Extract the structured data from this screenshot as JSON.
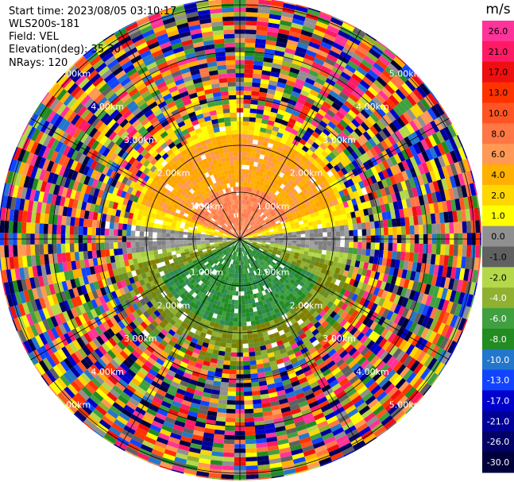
{
  "header": {
    "start_time": "Start time: 2023/08/05 03:10:17",
    "instrument": "WLS200s-181",
    "field": "Field: VEL",
    "elevation": "Elevation(deg): 35.30",
    "nrays": "NRays: 120"
  },
  "chart_data": {
    "type": "ppi",
    "field": "VEL",
    "units": "m/s",
    "n_rays": 120,
    "range_rings": [
      "1.00km",
      "2.00km",
      "3.00km",
      "4.00km",
      "5.00km"
    ],
    "colorbar": {
      "unit": "m/s",
      "ticks": [
        "26.0",
        "21.0",
        "17.0",
        "13.0",
        "10.0",
        "8.0",
        "6.0",
        "4.0",
        "2.0",
        "1.0",
        "0.0",
        "-1.0",
        "-2.0",
        "-4.0",
        "-6.0",
        "-8.0",
        "-10.0",
        "-13.0",
        "-17.0",
        "-21.0",
        "-26.0",
        "-30.0"
      ],
      "colors": [
        "#ff3399",
        "#ff1a66",
        "#ee1010",
        "#ff3300",
        "#ff5522",
        "#ff7744",
        "#ff9955",
        "#ffb000",
        "#ffd700",
        "#ffff00",
        "#909090",
        "#606060",
        "#b4d84a",
        "#90b030",
        "#40a040",
        "#228b22",
        "#2277cc",
        "#1144ff",
        "#0000cc",
        "#000099",
        "#000066",
        "#00003a"
      ]
    }
  }
}
